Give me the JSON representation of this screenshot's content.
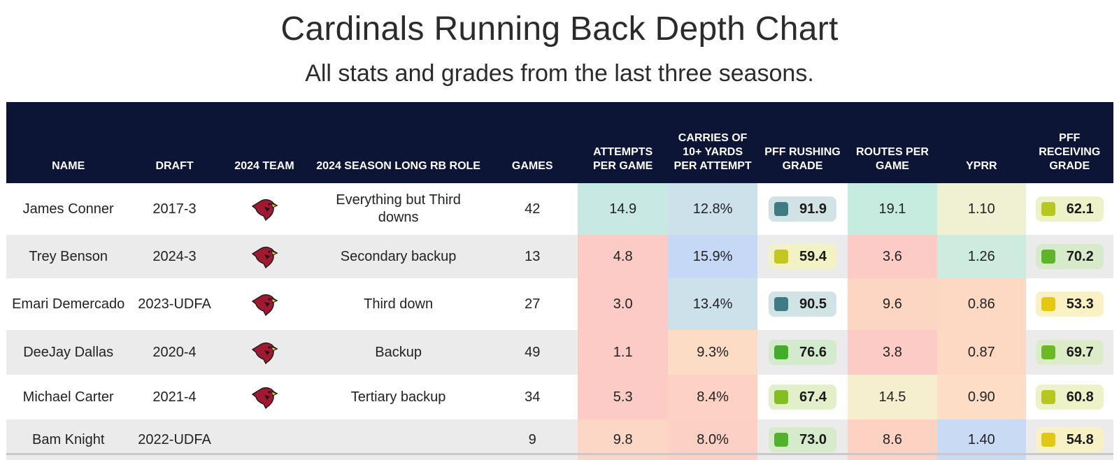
{
  "header": {
    "title": "Cardinals Running Back Depth Chart",
    "subtitle": "All stats and grades from the last three seasons."
  },
  "columns": [
    "NAME",
    "DRAFT",
    "2024 TEAM",
    "2024 SEASON LONG RB ROLE",
    "GAMES",
    "ATTEMPTS PER GAME",
    "CARRIES OF 10+ YARDS PER ATTEMPT",
    "PFF RUSHING GRADE",
    "ROUTES PER GAME",
    "YPRR",
    "PFF RECEIVING GRADE"
  ],
  "rows": [
    {
      "name": "James Conner",
      "draft": "2017-3",
      "team_icon": "cardinals-logo-icon",
      "role": "Everything but Third downs",
      "games": "42",
      "attempts": "14.9",
      "attempts_bg": "#c8e9e3",
      "carries10": "12.8%",
      "carries10_bg": "#cde1ea",
      "rush_grade": "91.9",
      "rush_box": "#3f7b82",
      "rush_pill": "#d2e3e6",
      "routes": "19.1",
      "routes_bg": "#c6ecdf",
      "yprr": "1.10",
      "yprr_bg": "#f0f0d3",
      "rec_grade": "62.1",
      "rec_box": "#b8c71f",
      "rec_pill": "#eef2c8"
    },
    {
      "name": "Trey Benson",
      "draft": "2024-3",
      "team_icon": "cardinals-logo-icon",
      "role": "Secondary backup",
      "games": "13",
      "attempts": "4.8",
      "attempts_bg": "#fccbc6",
      "carries10": "15.9%",
      "carries10_bg": "#c5d9f6",
      "rush_grade": "59.4",
      "rush_box": "#c4c71e",
      "rush_pill": "#f2f2c4",
      "routes": "3.6",
      "routes_bg": "#fccbc6",
      "yprr": "1.26",
      "yprr_bg": "#cdebdf",
      "rec_grade": "70.2",
      "rec_box": "#5eb52a",
      "rec_pill": "#d7ebcb"
    },
    {
      "name": "Emari Demercado",
      "draft": "2023-UDFA",
      "team_icon": "cardinals-logo-icon",
      "role": "Third down",
      "games": "27",
      "attempts": "3.0",
      "attempts_bg": "#fccbc6",
      "carries10": "13.4%",
      "carries10_bg": "#cde1ea",
      "rush_grade": "90.5",
      "rush_box": "#3f7b82",
      "rush_pill": "#d2e3e6",
      "routes": "9.6",
      "routes_bg": "#fcd5c3",
      "yprr": "0.86",
      "yprr_bg": "#fdd9c4",
      "rec_grade": "53.3",
      "rec_box": "#e6c814",
      "rec_pill": "#faf2c4"
    },
    {
      "name": "DeeJay Dallas",
      "draft": "2020-4",
      "team_icon": "cardinals-logo-icon",
      "role": "Backup",
      "games": "49",
      "attempts": "1.1",
      "attempts_bg": "#fccbc6",
      "carries10": "9.3%",
      "carries10_bg": "#fddcc6",
      "rush_grade": "76.6",
      "rush_box": "#43ad2a",
      "rush_pill": "#d3ebcc",
      "routes": "3.8",
      "routes_bg": "#fccbc6",
      "yprr": "0.87",
      "yprr_bg": "#fdd9c4",
      "rec_grade": "69.7",
      "rec_box": "#6bb925",
      "rec_pill": "#dcecc9"
    },
    {
      "name": "Michael Carter",
      "draft": "2021-4",
      "team_icon": "cardinals-logo-icon",
      "role": "Tertiary backup",
      "games": "34",
      "attempts": "5.3",
      "attempts_bg": "#fccbc6",
      "carries10": "8.4%",
      "carries10_bg": "#fdd2c4",
      "rush_grade": "67.4",
      "rush_box": "#83bf23",
      "rush_pill": "#e3efca",
      "routes": "14.5",
      "routes_bg": "#f6efcf",
      "yprr": "0.90",
      "yprr_bg": "#fdddc6",
      "rec_grade": "60.8",
      "rec_box": "#b8c71f",
      "rec_pill": "#eef2c8"
    },
    {
      "name": "Bam Knight",
      "draft": "2022-UDFA",
      "team_icon": "",
      "role": "",
      "games": "9",
      "attempts": "9.8",
      "attempts_bg": "#fdd7c6",
      "carries10": "8.0%",
      "carries10_bg": "#fcd0c4",
      "rush_grade": "73.0",
      "rush_box": "#52b12a",
      "rush_pill": "#d6ebcc",
      "routes": "8.6",
      "routes_bg": "#fcd3c3",
      "yprr": "1.40",
      "yprr_bg": "#c9daf4",
      "rec_grade": "54.8",
      "rec_box": "#e0c815",
      "rec_pill": "#f7f1c5"
    }
  ],
  "colors": {
    "header_bg": "#0c1535",
    "header_text": "#ffffff",
    "row_alt_bg": "#ebebeb",
    "logo_red": "#a01930",
    "logo_yellow": "#f2c318"
  }
}
